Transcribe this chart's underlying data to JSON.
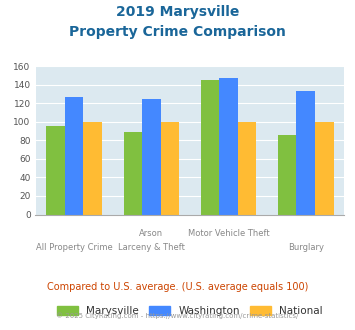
{
  "title_line1": "2019 Marysville",
  "title_line2": "Property Crime Comparison",
  "cat_labels_top": [
    "",
    "Arson",
    "Motor Vehicle Theft",
    ""
  ],
  "cat_labels_bottom": [
    "All Property Crime",
    "Larceny & Theft",
    "",
    "Burglary"
  ],
  "marysville": [
    95,
    89,
    145,
    86
  ],
  "washington": [
    127,
    124,
    147,
    133
  ],
  "national": [
    100,
    100,
    100,
    100
  ],
  "colors": {
    "marysville": "#80c040",
    "washington": "#4488ff",
    "national": "#ffbb33"
  },
  "ylim": [
    0,
    160
  ],
  "yticks": [
    0,
    20,
    40,
    60,
    80,
    100,
    120,
    140,
    160
  ],
  "background_color": "#dce9f0",
  "title_color": "#1a6699",
  "subtitle_text": "Compared to U.S. average. (U.S. average equals 100)",
  "subtitle_color": "#cc4400",
  "footer_text": "© 2025 CityRating.com - https://www.cityrating.com/crime-statistics/",
  "footer_color": "#999999",
  "legend_labels": [
    "Marysville",
    "Washington",
    "National"
  ]
}
